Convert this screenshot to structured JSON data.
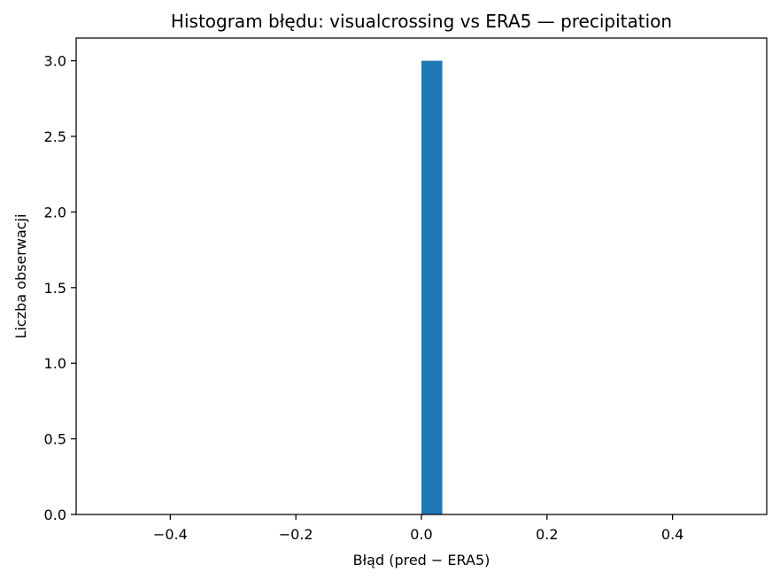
{
  "chart_data": {
    "type": "bar",
    "title": "Histogram błędu: visualcrossing vs ERA5 — precipitation",
    "xlabel": "Błąd (pred − ERA5)",
    "ylabel": "Liczba obserwacji",
    "xlim": [
      -0.55,
      0.55
    ],
    "ylim": [
      0,
      3.15
    ],
    "bins": [
      {
        "x0": 0.0,
        "x1": 0.0333,
        "count": 3
      }
    ],
    "xticks": [
      -0.4,
      -0.2,
      0.0,
      0.2,
      0.4
    ],
    "xtick_labels": [
      "−0.4",
      "−0.2",
      "0.0",
      "0.2",
      "0.4"
    ],
    "yticks": [
      0.0,
      0.5,
      1.0,
      1.5,
      2.0,
      2.5,
      3.0
    ],
    "ytick_labels": [
      "0.0",
      "0.5",
      "1.0",
      "1.5",
      "2.0",
      "2.5",
      "3.0"
    ],
    "bar_color": "#1f77b4",
    "grid": false,
    "legend": false
  }
}
